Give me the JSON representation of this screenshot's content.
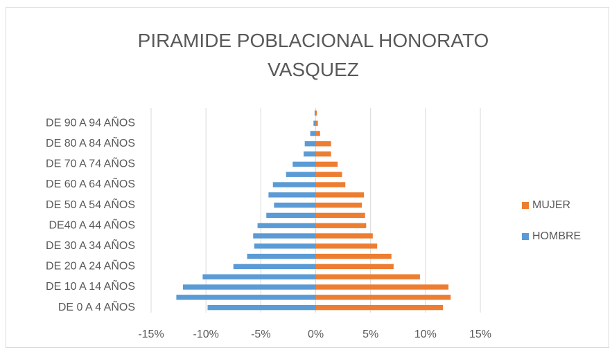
{
  "chart_data": {
    "type": "bar",
    "orientation": "horizontal",
    "title": "PIRAMIDE POBLACIONAL HONORATO VASQUEZ",
    "categories": [
      "DE 0 A 4 AÑOS",
      null,
      "DE 10 A 14 AÑOS",
      null,
      "DE 20 A 24 AÑOS",
      null,
      "DE 30 A 34 AÑOS",
      null,
      "DE40 A 44 AÑOS",
      null,
      "DE 50 A 54 AÑOS",
      null,
      "DE 60 A 64 AÑOS",
      null,
      "DE 70 A 74 AÑOS",
      null,
      "DE 80 A 84 AÑOS",
      null,
      "DE 90 A 94 AÑOS",
      null
    ],
    "series": [
      {
        "name": "MUJER",
        "color": "#ed7d31",
        "values": [
          11.6,
          12.3,
          12.1,
          9.5,
          7.1,
          6.9,
          5.6,
          5.2,
          4.6,
          4.5,
          4.2,
          4.4,
          2.7,
          2.4,
          2.0,
          1.4,
          1.4,
          0.4,
          0.2,
          0.1
        ]
      },
      {
        "name": "HOMBRE",
        "color": "#5b9bd5",
        "values": [
          -9.85,
          -12.7,
          -12.1,
          -10.3,
          -7.5,
          -6.25,
          -5.6,
          -5.7,
          -5.3,
          -4.5,
          -3.8,
          -4.3,
          -3.9,
          -2.7,
          -2.1,
          -1.1,
          -1.0,
          -0.5,
          -0.2,
          -0.1
        ]
      }
    ],
    "xlim": [
      -15,
      15
    ],
    "xticks": [
      {
        "value": -15,
        "label": "-15%"
      },
      {
        "value": -10,
        "label": "-10%"
      },
      {
        "value": -5,
        "label": "-5%"
      },
      {
        "value": 0,
        "label": "0%"
      },
      {
        "value": 5,
        "label": "5%"
      },
      {
        "value": 10,
        "label": "10%"
      },
      {
        "value": 15,
        "label": "15%"
      }
    ],
    "grid": true,
    "legend": "right"
  }
}
